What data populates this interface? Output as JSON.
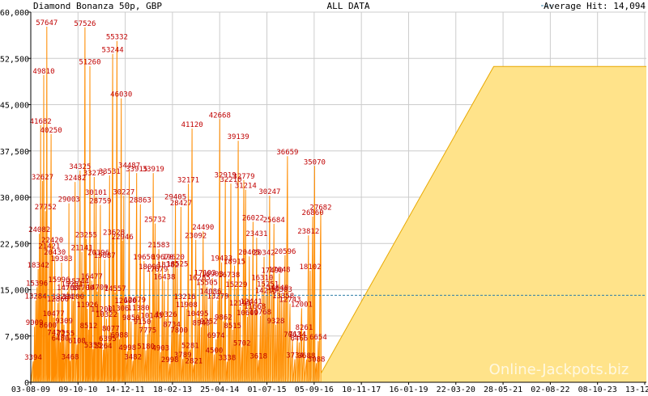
{
  "header": {
    "title": "Diamond Bonanza 50p, GBP",
    "range": "ALL DATA",
    "average_legend": "Average Hit: 14,094"
  },
  "watermark": "Online-Jackpots.biz",
  "colors": {
    "series": "#ff8c00",
    "fill": "#ffa500",
    "future_fill": "#ffe38a",
    "future_line": "#e8a800",
    "average": "#2f7fa8",
    "grid": "#cccccc",
    "label": "#c00000"
  },
  "chart_data": {
    "type": "area",
    "title": "Diamond Bonanza 50p, GBP",
    "xlabel": "",
    "ylabel": "",
    "ylim": [
      0,
      60000
    ],
    "yticks": [
      "0",
      "7,500",
      "15,000",
      "22,500",
      "30,000",
      "37,500",
      "45,000",
      "52,500",
      "60,000"
    ],
    "ytick_values": [
      0,
      7500,
      15000,
      22500,
      30000,
      37500,
      45000,
      52500,
      60000
    ],
    "xticks": [
      "03-08-09",
      "09-10-10",
      "14-12-11",
      "18-02-13",
      "25-04-14",
      "01-07-15",
      "05-09-16",
      "10-11-17",
      "16-01-19",
      "22-03-20",
      "28-05-21",
      "02-08-22",
      "08-10-23",
      "13-12-24"
    ],
    "grid": true,
    "average_hit": 14094,
    "current_value": 51200,
    "current_start_fraction": 0.752,
    "peaks": [
      {
        "t": 0.004,
        "v": 3394
      },
      {
        "t": 0.006,
        "v": 9009
      },
      {
        "t": 0.008,
        "v": 13284
      },
      {
        "t": 0.01,
        "v": 15396
      },
      {
        "t": 0.012,
        "v": 18342
      },
      {
        "t": 0.014,
        "v": 24082
      },
      {
        "t": 0.016,
        "v": 41682
      },
      {
        "t": 0.019,
        "v": 32627
      },
      {
        "t": 0.021,
        "v": 49810
      },
      {
        "t": 0.024,
        "v": 27752
      },
      {
        "t": 0.026,
        "v": 57647
      },
      {
        "t": 0.028,
        "v": 8600
      },
      {
        "t": 0.03,
        "v": 21421
      },
      {
        "t": 0.033,
        "v": 40250
      },
      {
        "t": 0.035,
        "v": 22420
      },
      {
        "t": 0.037,
        "v": 10477
      },
      {
        "t": 0.039,
        "v": 20430
      },
      {
        "t": 0.041,
        "v": 7423
      },
      {
        "t": 0.044,
        "v": 12860
      },
      {
        "t": 0.046,
        "v": 15996
      },
      {
        "t": 0.048,
        "v": 6480
      },
      {
        "t": 0.05,
        "v": 19383
      },
      {
        "t": 0.052,
        "v": 13204
      },
      {
        "t": 0.054,
        "v": 9309
      },
      {
        "t": 0.057,
        "v": 7255
      },
      {
        "t": 0.06,
        "v": 14700
      },
      {
        "t": 0.062,
        "v": 29003
      },
      {
        "t": 0.064,
        "v": 3468
      },
      {
        "t": 0.067,
        "v": 15251
      },
      {
        "t": 0.069,
        "v": 13200
      },
      {
        "t": 0.072,
        "v": 32482
      },
      {
        "t": 0.075,
        "v": 6108
      },
      {
        "t": 0.077,
        "v": 15744
      },
      {
        "t": 0.08,
        "v": 34325
      },
      {
        "t": 0.083,
        "v": 21141
      },
      {
        "t": 0.085,
        "v": 14700
      },
      {
        "t": 0.088,
        "v": 57526
      },
      {
        "t": 0.09,
        "v": 23255
      },
      {
        "t": 0.092,
        "v": 11926
      },
      {
        "t": 0.094,
        "v": 8512
      },
      {
        "t": 0.096,
        "v": 51260
      },
      {
        "t": 0.099,
        "v": 16477
      },
      {
        "t": 0.101,
        "v": 5355
      },
      {
        "t": 0.103,
        "v": 33273
      },
      {
        "t": 0.106,
        "v": 30101
      },
      {
        "t": 0.108,
        "v": 14709
      },
      {
        "t": 0.11,
        "v": 20396
      },
      {
        "t": 0.113,
        "v": 28759
      },
      {
        "t": 0.115,
        "v": 11200
      },
      {
        "t": 0.118,
        "v": 5264
      },
      {
        "t": 0.12,
        "v": 19887
      },
      {
        "t": 0.123,
        "v": 10322
      },
      {
        "t": 0.125,
        "v": 6395
      },
      {
        "t": 0.128,
        "v": 33531
      },
      {
        "t": 0.13,
        "v": 8077
      },
      {
        "t": 0.133,
        "v": 53244
      },
      {
        "t": 0.135,
        "v": 23628
      },
      {
        "t": 0.137,
        "v": 14557
      },
      {
        "t": 0.14,
        "v": 55332
      },
      {
        "t": 0.142,
        "v": 11306
      },
      {
        "t": 0.144,
        "v": 6988
      },
      {
        "t": 0.147,
        "v": 46030
      },
      {
        "t": 0.149,
        "v": 22946
      },
      {
        "t": 0.151,
        "v": 30227
      },
      {
        "t": 0.154,
        "v": 12600
      },
      {
        "t": 0.157,
        "v": 4998
      },
      {
        "t": 0.16,
        "v": 34487
      },
      {
        "t": 0.163,
        "v": 9850
      },
      {
        "t": 0.166,
        "v": 3482
      },
      {
        "t": 0.169,
        "v": 12679
      },
      {
        "t": 0.172,
        "v": 33915
      },
      {
        "t": 0.175,
        "v": 11380
      },
      {
        "t": 0.178,
        "v": 28863
      },
      {
        "t": 0.181,
        "v": 9150
      },
      {
        "t": 0.184,
        "v": 19650
      },
      {
        "t": 0.187,
        "v": 5180
      },
      {
        "t": 0.19,
        "v": 7775
      },
      {
        "t": 0.193,
        "v": 18099
      },
      {
        "t": 0.196,
        "v": 10143
      },
      {
        "t": 0.199,
        "v": 33919
      },
      {
        "t": 0.202,
        "v": 25732
      },
      {
        "t": 0.205,
        "v": 17679
      },
      {
        "t": 0.208,
        "v": 21583
      },
      {
        "t": 0.211,
        "v": 4903
      },
      {
        "t": 0.214,
        "v": 19670
      },
      {
        "t": 0.217,
        "v": 16438
      },
      {
        "t": 0.22,
        "v": 10326
      },
      {
        "t": 0.223,
        "v": 18382
      },
      {
        "t": 0.226,
        "v": 2998
      },
      {
        "t": 0.229,
        "v": 8734
      },
      {
        "t": 0.232,
        "v": 19620
      },
      {
        "t": 0.235,
        "v": 29405
      },
      {
        "t": 0.238,
        "v": 18525
      },
      {
        "t": 0.241,
        "v": 7800
      },
      {
        "t": 0.244,
        "v": 28427
      },
      {
        "t": 0.247,
        "v": 3789
      },
      {
        "t": 0.25,
        "v": 13216
      },
      {
        "t": 0.253,
        "v": 11908
      },
      {
        "t": 0.256,
        "v": 32171
      },
      {
        "t": 0.259,
        "v": 5281
      },
      {
        "t": 0.262,
        "v": 41120
      },
      {
        "t": 0.265,
        "v": 2821
      },
      {
        "t": 0.268,
        "v": 23092
      },
      {
        "t": 0.271,
        "v": 10495
      },
      {
        "t": 0.274,
        "v": 16285
      },
      {
        "t": 0.277,
        "v": 8943
      },
      {
        "t": 0.28,
        "v": 24490
      },
      {
        "t": 0.283,
        "v": 17103
      },
      {
        "t": 0.286,
        "v": 15505
      },
      {
        "t": 0.289,
        "v": 9252
      },
      {
        "t": 0.292,
        "v": 14086
      },
      {
        "t": 0.295,
        "v": 16903
      },
      {
        "t": 0.298,
        "v": 4500
      },
      {
        "t": 0.301,
        "v": 6974
      },
      {
        "t": 0.304,
        "v": 13279
      },
      {
        "t": 0.307,
        "v": 42668
      },
      {
        "t": 0.31,
        "v": 19433
      },
      {
        "t": 0.313,
        "v": 9862
      },
      {
        "t": 0.316,
        "v": 32919
      },
      {
        "t": 0.319,
        "v": 3338
      },
      {
        "t": 0.322,
        "v": 16738
      },
      {
        "t": 0.325,
        "v": 32210
      },
      {
        "t": 0.328,
        "v": 8515
      },
      {
        "t": 0.331,
        "v": 18915
      },
      {
        "t": 0.334,
        "v": 15229
      },
      {
        "t": 0.337,
        "v": 39139
      },
      {
        "t": 0.34,
        "v": 12195
      },
      {
        "t": 0.343,
        "v": 5702
      },
      {
        "t": 0.346,
        "v": 32779
      },
      {
        "t": 0.349,
        "v": 31214
      },
      {
        "t": 0.352,
        "v": 10609
      },
      {
        "t": 0.355,
        "v": 20405
      },
      {
        "t": 0.358,
        "v": 12441
      },
      {
        "t": 0.361,
        "v": 26022
      },
      {
        "t": 0.364,
        "v": 11668
      },
      {
        "t": 0.367,
        "v": 23431
      },
      {
        "t": 0.37,
        "v": 3618
      },
      {
        "t": 0.373,
        "v": 10768
      },
      {
        "t": 0.376,
        "v": 16310
      },
      {
        "t": 0.379,
        "v": 20342
      },
      {
        "t": 0.382,
        "v": 14215
      },
      {
        "t": 0.385,
        "v": 15251
      },
      {
        "t": 0.388,
        "v": 30247
      },
      {
        "t": 0.392,
        "v": 17490
      },
      {
        "t": 0.395,
        "v": 25684
      },
      {
        "t": 0.398,
        "v": 9328
      },
      {
        "t": 0.401,
        "v": 14648
      },
      {
        "t": 0.404,
        "v": 17648
      },
      {
        "t": 0.407,
        "v": 14383
      },
      {
        "t": 0.41,
        "v": 13358
      },
      {
        "t": 0.413,
        "v": 20596
      },
      {
        "t": 0.417,
        "v": 36659
      },
      {
        "t": 0.421,
        "v": 12743
      },
      {
        "t": 0.425,
        "v": 7063
      },
      {
        "t": 0.429,
        "v": 3734
      },
      {
        "t": 0.433,
        "v": 7134
      },
      {
        "t": 0.436,
        "v": 6466
      },
      {
        "t": 0.44,
        "v": 12001
      },
      {
        "t": 0.444,
        "v": 8261
      },
      {
        "t": 0.448,
        "v": 3688
      },
      {
        "t": 0.451,
        "v": 23812
      },
      {
        "t": 0.454,
        "v": 18102
      },
      {
        "t": 0.458,
        "v": 26860
      },
      {
        "t": 0.461,
        "v": 35070
      },
      {
        "t": 0.464,
        "v": 3088
      },
      {
        "t": 0.467,
        "v": 6654
      },
      {
        "t": 0.471,
        "v": 27682
      }
    ]
  }
}
